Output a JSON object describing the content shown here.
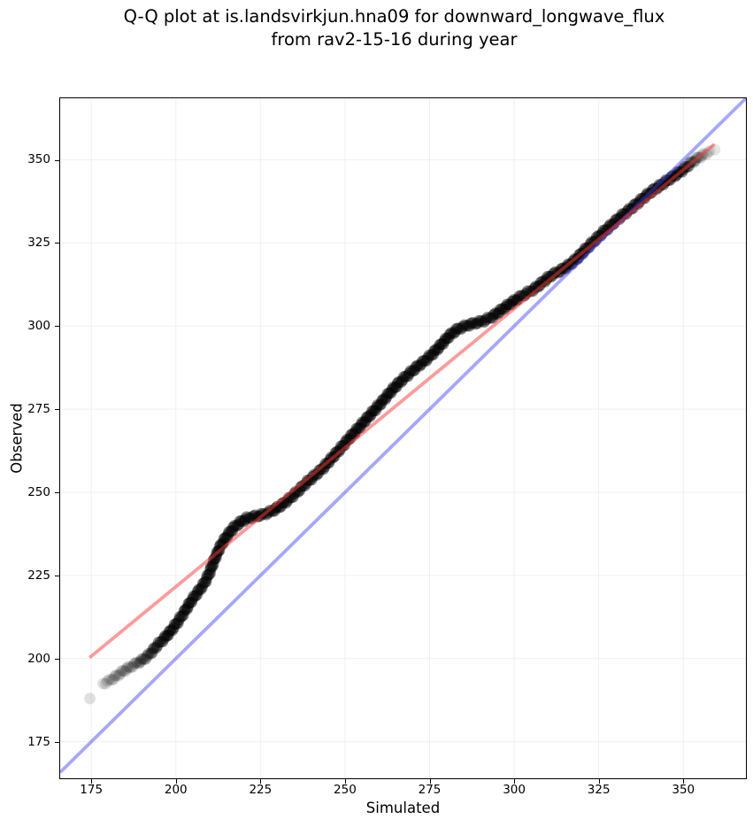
{
  "figure": {
    "background": "#ffffff",
    "spine_color": "#000000"
  },
  "chart_data": {
    "type": "scatter",
    "subtype": "qq-plot",
    "title_line1": "Q-Q plot at is.landsvirkjun.hna09 for downward_longwave_flux",
    "title_line2": "from rav2-15-16 during year",
    "xlabel": "Simulated",
    "ylabel": "Observed",
    "xlim": [
      165.8,
      368.5
    ],
    "ylim": [
      164.0,
      368.5
    ],
    "xticks": [
      175,
      200,
      225,
      250,
      275,
      300,
      325,
      350
    ],
    "yticks": [
      175,
      200,
      225,
      250,
      275,
      300,
      325,
      350
    ],
    "grid": true,
    "grid_color": "#efefef",
    "legend": "none",
    "identity_line": {
      "x1": 165.8,
      "y1": 165.8,
      "x2": 368.5,
      "y2": 368.5,
      "color": "rgba(60,60,245,0.45)",
      "width": 3.8
    },
    "fit_line": {
      "x1": 174.5,
      "y1": 200.3,
      "x2": 359.2,
      "y2": 354.7,
      "color": "rgba(252,55,55,0.5)",
      "width": 3.8
    },
    "marker": {
      "radius": 6.5,
      "color": "#000000",
      "alpha": 0.45,
      "spacing_px": 2.5
    },
    "scatter_curve": [
      [
        178.5,
        192.5,
        0.28
      ],
      [
        180.5,
        193.4,
        0.3
      ],
      [
        182.5,
        194.8,
        0.32
      ],
      [
        184.5,
        196.3,
        0.35
      ],
      [
        186.5,
        197.5,
        0.4
      ],
      [
        188.5,
        198.6,
        0.5
      ],
      [
        190.5,
        199.8,
        0.6
      ],
      [
        192.5,
        201.6,
        0.72
      ],
      [
        194.5,
        204.0,
        0.85
      ],
      [
        196.5,
        206.0,
        1
      ],
      [
        198.5,
        208.3,
        1
      ],
      [
        200.5,
        211.0,
        1
      ],
      [
        202.5,
        214.0,
        1
      ],
      [
        204.5,
        217.3,
        1
      ],
      [
        206.5,
        220.0,
        1
      ],
      [
        208.5,
        222.8,
        1
      ],
      [
        210.0,
        226.0,
        1
      ],
      [
        211.5,
        230.0,
        1
      ],
      [
        213.0,
        233.5,
        1
      ],
      [
        215.0,
        236.8,
        1
      ],
      [
        217.0,
        239.3,
        1
      ],
      [
        219.0,
        241.0,
        1
      ],
      [
        221.0,
        242.2,
        1
      ],
      [
        223.5,
        242.8,
        1
      ],
      [
        226.0,
        243.4,
        1
      ],
      [
        228.5,
        244.4,
        1
      ],
      [
        231.0,
        246.0,
        1
      ],
      [
        233.5,
        248.0,
        1
      ],
      [
        236.0,
        250.3,
        1
      ],
      [
        238.5,
        252.8,
        1
      ],
      [
        241.0,
        255.0,
        1
      ],
      [
        243.5,
        257.3,
        1
      ],
      [
        246.0,
        260.2,
        1
      ],
      [
        248.5,
        263.0,
        1
      ],
      [
        251.0,
        266.0,
        1
      ],
      [
        253.5,
        268.8,
        1
      ],
      [
        256.0,
        271.7,
        1
      ],
      [
        258.5,
        274.5,
        1
      ],
      [
        261.0,
        277.3,
        1
      ],
      [
        263.5,
        280.3,
        1
      ],
      [
        266.0,
        283.0,
        1
      ],
      [
        268.5,
        285.3,
        1
      ],
      [
        271.0,
        287.5,
        1
      ],
      [
        273.5,
        289.5,
        1
      ],
      [
        276.0,
        291.8,
        1
      ],
      [
        278.5,
        294.5,
        1
      ],
      [
        281.0,
        297.3,
        1
      ],
      [
        283.5,
        299.2,
        1
      ],
      [
        286.0,
        300.2,
        1
      ],
      [
        288.5,
        300.9,
        1
      ],
      [
        291.0,
        301.6,
        1
      ],
      [
        293.5,
        302.8,
        1
      ],
      [
        296.0,
        304.7,
        1
      ],
      [
        298.5,
        306.5,
        1
      ],
      [
        301.0,
        308.3,
        1
      ],
      [
        303.5,
        309.8,
        1
      ],
      [
        306.0,
        311.2,
        1
      ],
      [
        308.5,
        313.3,
        1
      ],
      [
        311.0,
        315.3,
        1
      ],
      [
        313.5,
        316.6,
        1
      ],
      [
        316.0,
        318.2,
        1
      ],
      [
        318.5,
        320.3,
        1
      ],
      [
        321.0,
        323.0,
        1
      ],
      [
        323.5,
        325.5,
        1
      ],
      [
        326.0,
        328.0,
        1
      ],
      [
        328.5,
        330.2,
        1
      ],
      [
        331.0,
        332.5,
        1
      ],
      [
        333.5,
        334.5,
        1
      ],
      [
        336.0,
        336.6,
        1
      ],
      [
        338.5,
        338.8,
        1
      ],
      [
        341.0,
        340.8,
        1
      ],
      [
        343.5,
        342.5,
        1
      ],
      [
        346.0,
        344.3,
        1
      ],
      [
        348.5,
        346.0,
        1
      ],
      [
        350.5,
        347.5,
        0.9
      ],
      [
        352.0,
        348.8,
        0.7
      ],
      [
        353.5,
        350.0,
        0.5
      ],
      [
        355.0,
        351.0,
        0.35
      ],
      [
        356.5,
        351.8,
        0.22
      ],
      [
        358.0,
        352.5,
        0.15
      ]
    ],
    "isolated_points": [
      [
        174.6,
        188.0,
        0.12
      ],
      [
        359.3,
        353.0,
        0.1
      ]
    ]
  }
}
